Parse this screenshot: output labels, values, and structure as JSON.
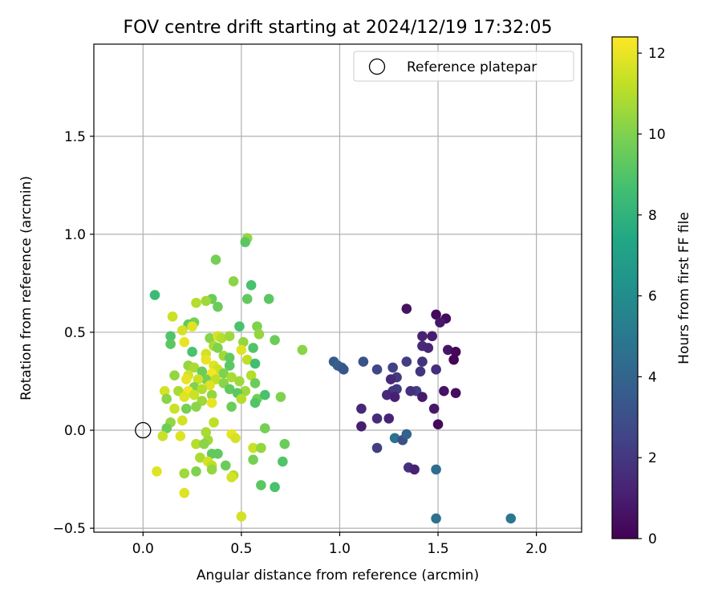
{
  "chart_data": {
    "type": "scatter",
    "title": "FOV centre drift starting at 2024/12/19 17:32:05",
    "xlabel": "Angular distance from reference (arcmin)",
    "ylabel": "Rotation from reference (arcmin)",
    "xlim": [
      -0.25,
      2.23
    ],
    "ylim": [
      -0.52,
      1.97
    ],
    "xticks": [
      0.0,
      0.5,
      1.0,
      1.5,
      2.0
    ],
    "xtick_labels": [
      "0.0",
      "0.5",
      "1.0",
      "1.5",
      "2.0"
    ],
    "yticks": [
      -0.5,
      0.0,
      0.5,
      1.0,
      1.5
    ],
    "ytick_labels": [
      "−0.5",
      "0.0",
      "0.5",
      "1.0",
      "1.5"
    ],
    "grid": true,
    "legend": {
      "position": "top-right",
      "entries": [
        "Reference platepar"
      ]
    },
    "reference_point": {
      "x": 0.0,
      "y": 0.0,
      "label": "Reference platepar"
    },
    "colorbar": {
      "label": "Hours from first FF file",
      "colormap": "viridis",
      "range": [
        0,
        12.4
      ],
      "ticks": [
        0,
        2,
        4,
        6,
        8,
        10,
        12
      ],
      "tick_labels": [
        "0",
        "2",
        "4",
        "6",
        "8",
        "10",
        "12"
      ]
    },
    "points_hours_color_note": "c = hours from first FF file",
    "points": [
      {
        "x": 1.34,
        "y": 0.62,
        "c": 0.6
      },
      {
        "x": 1.49,
        "y": 0.59,
        "c": 0.3
      },
      {
        "x": 1.54,
        "y": 0.57,
        "c": 0.4
      },
      {
        "x": 1.51,
        "y": 0.55,
        "c": 0.8
      },
      {
        "x": 1.42,
        "y": 0.48,
        "c": 1.2
      },
      {
        "x": 1.47,
        "y": 0.48,
        "c": 1.0
      },
      {
        "x": 1.55,
        "y": 0.41,
        "c": 0.7
      },
      {
        "x": 1.59,
        "y": 0.4,
        "c": 0.2
      },
      {
        "x": 1.42,
        "y": 0.43,
        "c": 1.5
      },
      {
        "x": 1.45,
        "y": 0.42,
        "c": 1.3
      },
      {
        "x": 1.58,
        "y": 0.36,
        "c": 0.1
      },
      {
        "x": 1.34,
        "y": 0.35,
        "c": 2.2
      },
      {
        "x": 1.42,
        "y": 0.35,
        "c": 1.8
      },
      {
        "x": 1.49,
        "y": 0.31,
        "c": 1.6
      },
      {
        "x": 1.41,
        "y": 0.3,
        "c": 1.9
      },
      {
        "x": 1.27,
        "y": 0.32,
        "c": 2.4
      },
      {
        "x": 1.19,
        "y": 0.31,
        "c": 2.6
      },
      {
        "x": 1.12,
        "y": 0.35,
        "c": 3.2
      },
      {
        "x": 1.29,
        "y": 0.27,
        "c": 2.0
      },
      {
        "x": 1.26,
        "y": 0.26,
        "c": 1.4
      },
      {
        "x": 1.39,
        "y": 0.2,
        "c": 2.3
      },
      {
        "x": 1.36,
        "y": 0.2,
        "c": 1.7
      },
      {
        "x": 1.29,
        "y": 0.21,
        "c": 2.1
      },
      {
        "x": 1.27,
        "y": 0.2,
        "c": 2.0
      },
      {
        "x": 1.24,
        "y": 0.18,
        "c": 1.5
      },
      {
        "x": 1.28,
        "y": 0.17,
        "c": 1.1
      },
      {
        "x": 1.42,
        "y": 0.17,
        "c": 0.9
      },
      {
        "x": 1.53,
        "y": 0.2,
        "c": 0.6
      },
      {
        "x": 1.59,
        "y": 0.19,
        "c": 0.4
      },
      {
        "x": 1.48,
        "y": 0.11,
        "c": 0.8
      },
      {
        "x": 1.11,
        "y": 0.11,
        "c": 1.4
      },
      {
        "x": 1.19,
        "y": 0.06,
        "c": 1.6
      },
      {
        "x": 1.25,
        "y": 0.06,
        "c": 1.2
      },
      {
        "x": 1.11,
        "y": 0.02,
        "c": 1.0
      },
      {
        "x": 1.5,
        "y": 0.03,
        "c": 0.3
      },
      {
        "x": 0.97,
        "y": 0.35,
        "c": 3.5
      },
      {
        "x": 0.99,
        "y": 0.33,
        "c": 3.8
      },
      {
        "x": 1.01,
        "y": 0.32,
        "c": 3.6
      },
      {
        "x": 1.02,
        "y": 0.31,
        "c": 3.3
      },
      {
        "x": 1.28,
        "y": -0.04,
        "c": 4.6
      },
      {
        "x": 1.32,
        "y": -0.05,
        "c": 3.0
      },
      {
        "x": 1.34,
        "y": -0.02,
        "c": 3.9
      },
      {
        "x": 1.19,
        "y": -0.09,
        "c": 2.2
      },
      {
        "x": 1.35,
        "y": -0.19,
        "c": 1.8
      },
      {
        "x": 1.38,
        "y": -0.2,
        "c": 1.2
      },
      {
        "x": 1.49,
        "y": -0.2,
        "c": 4.4
      },
      {
        "x": 1.49,
        "y": -0.45,
        "c": 4.6
      },
      {
        "x": 1.87,
        "y": -0.45,
        "c": 4.9
      },
      {
        "x": 0.06,
        "y": 0.69,
        "c": 8.4
      },
      {
        "x": 0.53,
        "y": 0.98,
        "c": 10.4
      },
      {
        "x": 0.52,
        "y": 0.96,
        "c": 9.2
      },
      {
        "x": 0.37,
        "y": 0.87,
        "c": 9.8
      },
      {
        "x": 0.46,
        "y": 0.76,
        "c": 10.2
      },
      {
        "x": 0.55,
        "y": 0.74,
        "c": 8.8
      },
      {
        "x": 0.53,
        "y": 0.67,
        "c": 9.4
      },
      {
        "x": 0.64,
        "y": 0.67,
        "c": 9.2
      },
      {
        "x": 0.35,
        "y": 0.67,
        "c": 9.6
      },
      {
        "x": 0.32,
        "y": 0.66,
        "c": 10.6
      },
      {
        "x": 0.27,
        "y": 0.65,
        "c": 11.0
      },
      {
        "x": 0.38,
        "y": 0.63,
        "c": 9.6
      },
      {
        "x": 0.15,
        "y": 0.58,
        "c": 11.4
      },
      {
        "x": 0.26,
        "y": 0.55,
        "c": 9.8
      },
      {
        "x": 0.23,
        "y": 0.54,
        "c": 9.4
      },
      {
        "x": 0.25,
        "y": 0.53,
        "c": 11.8
      },
      {
        "x": 0.49,
        "y": 0.53,
        "c": 8.8
      },
      {
        "x": 0.58,
        "y": 0.53,
        "c": 10.0
      },
      {
        "x": 0.2,
        "y": 0.51,
        "c": 11.6
      },
      {
        "x": 0.59,
        "y": 0.49,
        "c": 10.4
      },
      {
        "x": 0.14,
        "y": 0.48,
        "c": 9.0
      },
      {
        "x": 0.34,
        "y": 0.47,
        "c": 10.2
      },
      {
        "x": 0.38,
        "y": 0.48,
        "c": 11.6
      },
      {
        "x": 0.4,
        "y": 0.47,
        "c": 11.0
      },
      {
        "x": 0.44,
        "y": 0.48,
        "c": 10.6
      },
      {
        "x": 0.67,
        "y": 0.46,
        "c": 9.6
      },
      {
        "x": 0.21,
        "y": 0.45,
        "c": 12.0
      },
      {
        "x": 0.14,
        "y": 0.44,
        "c": 9.2
      },
      {
        "x": 0.51,
        "y": 0.45,
        "c": 10.4
      },
      {
        "x": 0.36,
        "y": 0.43,
        "c": 10.8
      },
      {
        "x": 0.38,
        "y": 0.42,
        "c": 10.0
      },
      {
        "x": 0.56,
        "y": 0.42,
        "c": 9.0
      },
      {
        "x": 0.81,
        "y": 0.41,
        "c": 10.2
      },
      {
        "x": 0.5,
        "y": 0.41,
        "c": 11.8
      },
      {
        "x": 0.25,
        "y": 0.4,
        "c": 8.8
      },
      {
        "x": 0.32,
        "y": 0.39,
        "c": 11.6
      },
      {
        "x": 0.41,
        "y": 0.38,
        "c": 10.6
      },
      {
        "x": 0.44,
        "y": 0.37,
        "c": 9.4
      },
      {
        "x": 0.53,
        "y": 0.36,
        "c": 11.2
      },
      {
        "x": 0.32,
        "y": 0.36,
        "c": 12.0
      },
      {
        "x": 0.57,
        "y": 0.34,
        "c": 8.6
      },
      {
        "x": 0.36,
        "y": 0.33,
        "c": 11.8
      },
      {
        "x": 0.23,
        "y": 0.33,
        "c": 10.4
      },
      {
        "x": 0.44,
        "y": 0.33,
        "c": 9.2
      },
      {
        "x": 0.26,
        "y": 0.32,
        "c": 10.8
      },
      {
        "x": 0.38,
        "y": 0.31,
        "c": 11.4
      },
      {
        "x": 0.3,
        "y": 0.3,
        "c": 9.6
      },
      {
        "x": 0.35,
        "y": 0.29,
        "c": 12.2
      },
      {
        "x": 0.41,
        "y": 0.29,
        "c": 10.0
      },
      {
        "x": 0.55,
        "y": 0.28,
        "c": 11.0
      },
      {
        "x": 0.23,
        "y": 0.28,
        "c": 11.6
      },
      {
        "x": 0.16,
        "y": 0.28,
        "c": 10.4
      },
      {
        "x": 0.45,
        "y": 0.27,
        "c": 10.8
      },
      {
        "x": 0.32,
        "y": 0.26,
        "c": 9.8
      },
      {
        "x": 0.22,
        "y": 0.26,
        "c": 12.0
      },
      {
        "x": 0.28,
        "y": 0.26,
        "c": 11.4
      },
      {
        "x": 0.37,
        "y": 0.26,
        "c": 11.2
      },
      {
        "x": 0.49,
        "y": 0.25,
        "c": 10.6
      },
      {
        "x": 0.57,
        "y": 0.24,
        "c": 9.6
      },
      {
        "x": 0.41,
        "y": 0.24,
        "c": 10.2
      },
      {
        "x": 0.34,
        "y": 0.23,
        "c": 11.8
      },
      {
        "x": 0.26,
        "y": 0.22,
        "c": 10.0
      },
      {
        "x": 0.44,
        "y": 0.21,
        "c": 9.4
      },
      {
        "x": 0.3,
        "y": 0.21,
        "c": 11.0
      },
      {
        "x": 0.18,
        "y": 0.2,
        "c": 10.8
      },
      {
        "x": 0.11,
        "y": 0.2,
        "c": 11.6
      },
      {
        "x": 0.23,
        "y": 0.2,
        "c": 12.2
      },
      {
        "x": 0.52,
        "y": 0.2,
        "c": 10.6
      },
      {
        "x": 0.48,
        "y": 0.19,
        "c": 9.2
      },
      {
        "x": 0.35,
        "y": 0.18,
        "c": 10.4
      },
      {
        "x": 0.26,
        "y": 0.18,
        "c": 11.4
      },
      {
        "x": 0.21,
        "y": 0.17,
        "c": 11.8
      },
      {
        "x": 0.7,
        "y": 0.17,
        "c": 10.0
      },
      {
        "x": 0.58,
        "y": 0.16,
        "c": 9.8
      },
      {
        "x": 0.12,
        "y": 0.16,
        "c": 10.2
      },
      {
        "x": 0.62,
        "y": 0.18,
        "c": 8.8
      },
      {
        "x": 0.5,
        "y": 0.16,
        "c": 11.0
      },
      {
        "x": 0.35,
        "y": 0.14,
        "c": 12.0
      },
      {
        "x": 0.3,
        "y": 0.15,
        "c": 10.6
      },
      {
        "x": 0.45,
        "y": 0.12,
        "c": 9.6
      },
      {
        "x": 0.16,
        "y": 0.11,
        "c": 11.4
      },
      {
        "x": 0.27,
        "y": 0.12,
        "c": 10.2
      },
      {
        "x": 0.22,
        "y": 0.11,
        "c": 9.8
      },
      {
        "x": 0.57,
        "y": 0.14,
        "c": 9.0
      },
      {
        "x": 0.2,
        "y": 0.05,
        "c": 11.6
      },
      {
        "x": 0.14,
        "y": 0.04,
        "c": 10.4
      },
      {
        "x": 0.36,
        "y": 0.04,
        "c": 11.2
      },
      {
        "x": 0.12,
        "y": 0.01,
        "c": 9.6
      },
      {
        "x": 0.32,
        "y": -0.01,
        "c": 10.8
      },
      {
        "x": 0.1,
        "y": -0.03,
        "c": 11.4
      },
      {
        "x": 0.19,
        "y": -0.03,
        "c": 11.8
      },
      {
        "x": 0.45,
        "y": -0.02,
        "c": 12.0
      },
      {
        "x": 0.47,
        "y": -0.04,
        "c": 11.6
      },
      {
        "x": 0.33,
        "y": -0.05,
        "c": 10.6
      },
      {
        "x": 0.27,
        "y": -0.07,
        "c": 11.0
      },
      {
        "x": 0.31,
        "y": -0.07,
        "c": 10.2
      },
      {
        "x": 0.56,
        "y": -0.09,
        "c": 11.4
      },
      {
        "x": 0.6,
        "y": -0.09,
        "c": 10.4
      },
      {
        "x": 0.72,
        "y": -0.07,
        "c": 9.6
      },
      {
        "x": 0.35,
        "y": -0.12,
        "c": 9.4
      },
      {
        "x": 0.29,
        "y": -0.14,
        "c": 10.8
      },
      {
        "x": 0.33,
        "y": -0.16,
        "c": 11.6
      },
      {
        "x": 0.56,
        "y": -0.15,
        "c": 9.8
      },
      {
        "x": 0.71,
        "y": -0.16,
        "c": 9.0
      },
      {
        "x": 0.35,
        "y": -0.18,
        "c": 11.2
      },
      {
        "x": 0.42,
        "y": -0.18,
        "c": 9.6
      },
      {
        "x": 0.35,
        "y": -0.2,
        "c": 10.4
      },
      {
        "x": 0.27,
        "y": -0.21,
        "c": 10.0
      },
      {
        "x": 0.07,
        "y": -0.21,
        "c": 11.8
      },
      {
        "x": 0.21,
        "y": -0.22,
        "c": 10.6
      },
      {
        "x": 0.46,
        "y": -0.23,
        "c": 11.0
      },
      {
        "x": 0.45,
        "y": -0.24,
        "c": 11.6
      },
      {
        "x": 0.6,
        "y": -0.28,
        "c": 9.2
      },
      {
        "x": 0.67,
        "y": -0.29,
        "c": 8.8
      },
      {
        "x": 0.21,
        "y": -0.32,
        "c": 11.8
      },
      {
        "x": 0.5,
        "y": -0.44,
        "c": 11.6
      },
      {
        "x": 0.38,
        "y": -0.12,
        "c": 9.4
      },
      {
        "x": 0.62,
        "y": 0.01,
        "c": 9.8
      }
    ]
  }
}
